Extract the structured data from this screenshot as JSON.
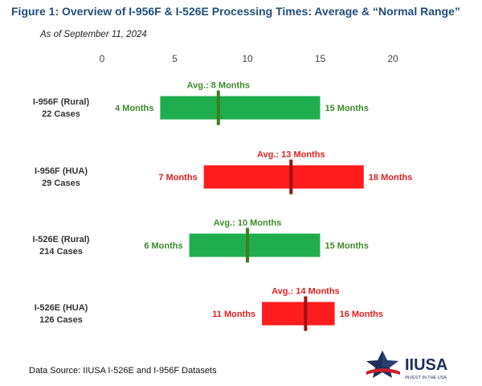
{
  "header": {
    "title": "Figure 1: Overview of I-956F & I-526E Processing Times: Average & “Normal Range”",
    "subtitle": "As of September 11, 2024"
  },
  "footer": {
    "source": "Data Source: IIUSA I-526E and I-956F Datasets"
  },
  "logo": {
    "text": "IIUSA",
    "tagline": "INVEST IN THE USA"
  },
  "colors": {
    "rural_bar": "#1fad4e",
    "rural_text": "#3b8a2a",
    "hua_bar": "#ff1c1c",
    "hua_text": "#e02020",
    "avg_marker_rural": "#3f7d1f",
    "avg_marker_hua": "#a01010",
    "category_text": "#333333",
    "axis_text": "#444444"
  },
  "chart_data": {
    "type": "bar",
    "orientation": "horizontal-range",
    "x_ticks": [
      "0",
      "5",
      "10",
      "15",
      "20"
    ],
    "xlim": [
      0,
      20
    ],
    "grid": false,
    "series": [
      {
        "category_line1": "I-956F (Rural)",
        "category_line2": "22 Cases",
        "min": 4,
        "max": 15,
        "avg": 8,
        "min_label": "4 Months",
        "max_label": "15 Months",
        "avg_label": "Avg.: 8 Months",
        "kind": "rural"
      },
      {
        "category_line1": "I-956F (HUA)",
        "category_line2": "29 Cases",
        "min": 7,
        "max": 18,
        "avg": 13,
        "min_label": "7 Months",
        "max_label": "18 Months",
        "avg_label": "Avg.: 13 Months",
        "kind": "hua"
      },
      {
        "category_line1": "I-526E (Rural)",
        "category_line2": "214 Cases",
        "min": 6,
        "max": 15,
        "avg": 10,
        "min_label": "6 Months",
        "max_label": "15 Months",
        "avg_label": "Avg.: 10 Months",
        "kind": "rural"
      },
      {
        "category_line1": "I-526E (HUA)",
        "category_line2": "126 Cases",
        "min": 11,
        "max": 16,
        "avg": 14,
        "min_label": "11 Months",
        "max_label": "16 Months",
        "avg_label": "Avg.: 14 Months",
        "kind": "hua"
      }
    ]
  }
}
